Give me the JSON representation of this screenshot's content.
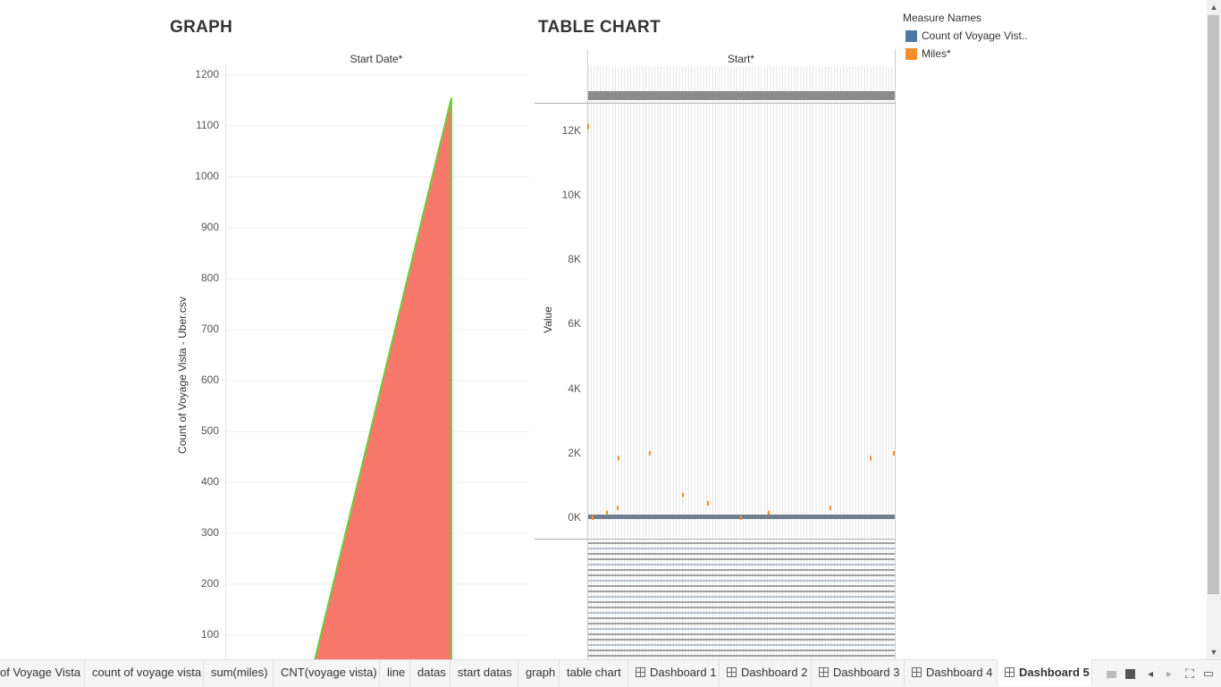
{
  "graph_section": {
    "title": "GRAPH",
    "column_header": "Start Date*",
    "y_axis_label": "Count of Voyage Vista - Uber.csv",
    "y_ticks": [
      "1200",
      "1100",
      "1000",
      "900",
      "800",
      "700",
      "600",
      "500",
      "400",
      "300",
      "200",
      "100"
    ]
  },
  "table_section": {
    "title": "TABLE CHART",
    "column_header": "Start*",
    "y_axis_label": "Value",
    "y_ticks": [
      "12K",
      "10K",
      "8K",
      "6K",
      "4K",
      "2K",
      "0K"
    ]
  },
  "legend": {
    "title": "Measure Names",
    "items": [
      {
        "label": "Count of Voyage Vist..",
        "color": "#4e79a7"
      },
      {
        "label": "Miles*",
        "color": "#f28e2b"
      }
    ]
  },
  "tabs": [
    {
      "label": "of Voyage Vista",
      "type": "sheet"
    },
    {
      "label": "count of voyage vista",
      "type": "sheet"
    },
    {
      "label": "sum(miles)",
      "type": "sheet"
    },
    {
      "label": "CNT(voyage vista)",
      "type": "sheet"
    },
    {
      "label": "line",
      "type": "sheet"
    },
    {
      "label": "datas",
      "type": "sheet"
    },
    {
      "label": "start datas",
      "type": "sheet"
    },
    {
      "label": "graph",
      "type": "sheet"
    },
    {
      "label": "table chart",
      "type": "sheet"
    },
    {
      "label": "Dashboard 1",
      "type": "dashboard"
    },
    {
      "label": "Dashboard 2",
      "type": "dashboard"
    },
    {
      "label": "Dashboard 3",
      "type": "dashboard"
    },
    {
      "label": "Dashboard 4",
      "type": "dashboard"
    },
    {
      "label": "Dashboard 5",
      "type": "dashboard",
      "active": true
    }
  ],
  "colors": {
    "area_fill": "#f7786b",
    "area_edge": "#6dcc3a",
    "series_count": "#4e79a7",
    "series_miles": "#f28e2b"
  },
  "chart_data": [
    {
      "type": "area",
      "title": "GRAPH",
      "xlabel": "Start Date*",
      "ylabel": "Count of Voyage Vista - Uber.csv",
      "ylim": [
        0,
        1200
      ],
      "series": [
        {
          "x": [
            0,
            1
          ],
          "values": [
            0,
            1155
          ]
        }
      ],
      "grid": true
    },
    {
      "type": "scatter",
      "title": "TABLE CHART",
      "xlabel": "Start*",
      "ylabel": "Value",
      "ylim": [
        0,
        12000
      ],
      "series": [
        {
          "name": "Count of Voyage Vist..",
          "values": [
            12150
          ]
        },
        {
          "name": "Miles*",
          "values": [
            0,
            150,
            300,
            1850,
            2000,
            700,
            450
          ]
        }
      ],
      "grid": true
    }
  ]
}
